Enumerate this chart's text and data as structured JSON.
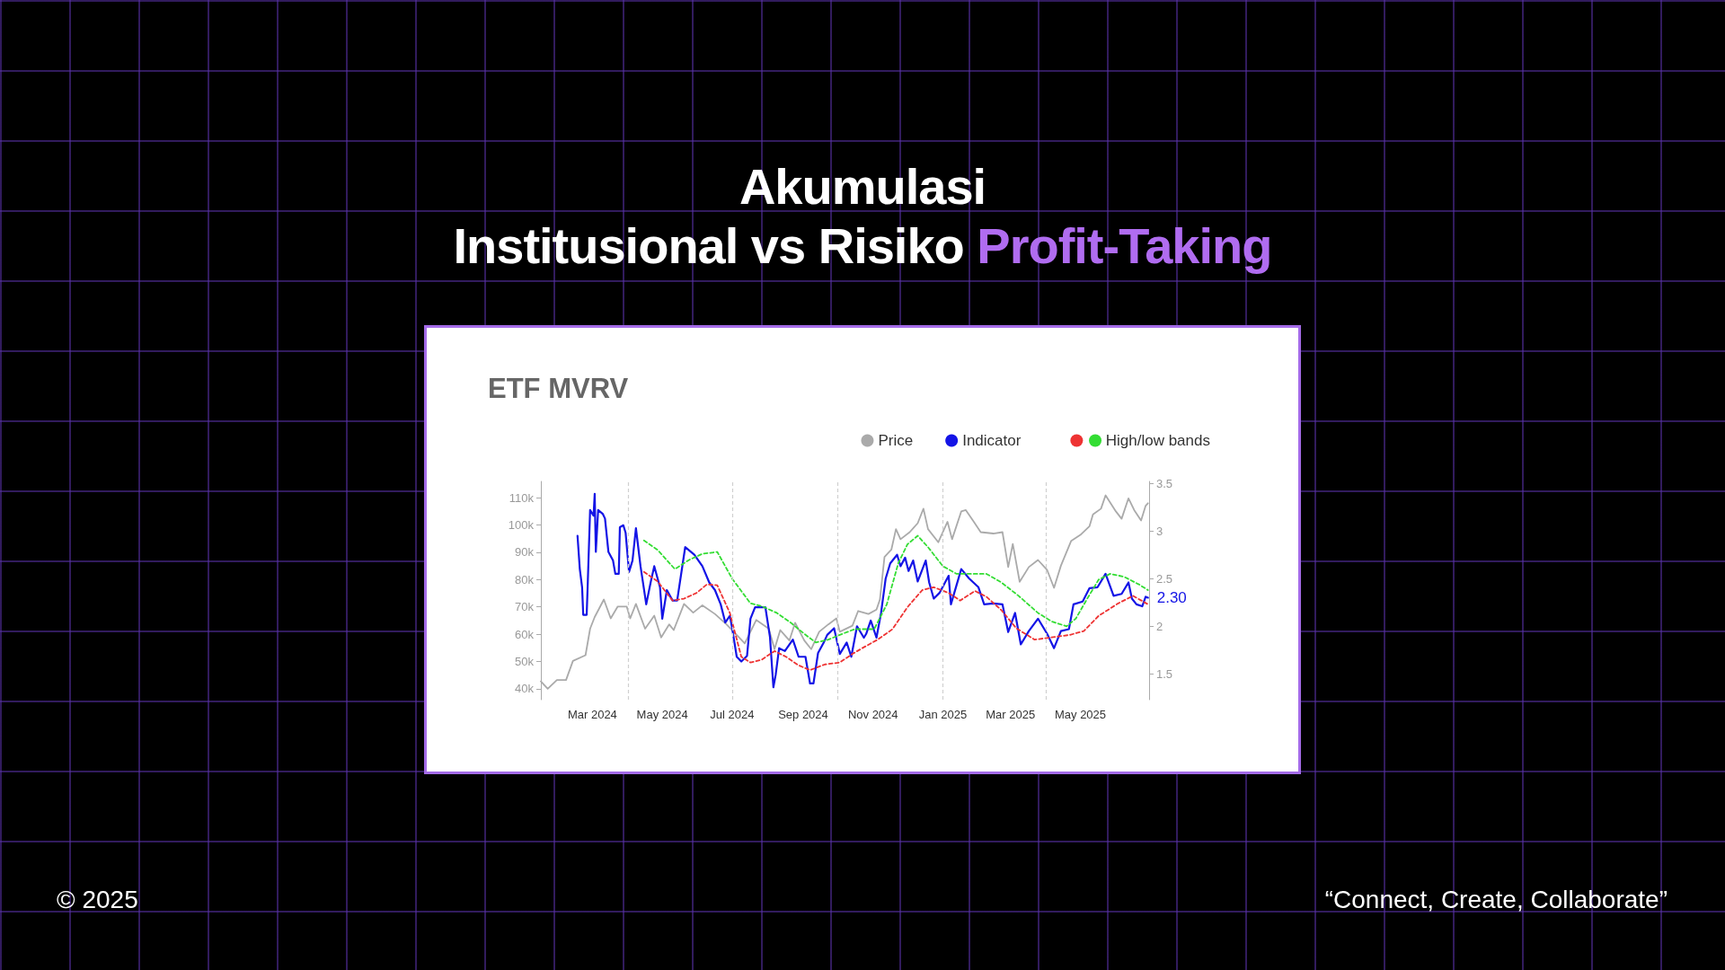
{
  "chart_data": {
    "type": "line",
    "title": "Akumulasi\nInstitusional vs Risiko Profit-Taking",
    "subtitle": "ETF MVRV",
    "annotations": [
      "© 2025",
      "“Connect, Create, Collaborate”"
    ],
    "legend": "top right",
    "marker": "none",
    "xlim": [
      "2024-01-16",
      "2025-06-30"
    ],
    "xticks": [
      {
        "value": "2024-03-01",
        "label": "Mar 2024"
      },
      {
        "value": "2024-05-01",
        "label": "May 2024"
      },
      {
        "value": "2024-07-01",
        "label": "Jul 2024"
      },
      {
        "value": "2024-09-01",
        "label": "Sep 2024"
      },
      {
        "value": "2024-11-01",
        "label": "Nov 2024"
      },
      {
        "value": "2025-01-01",
        "label": "Jan 2025"
      },
      {
        "value": "2025-03-01",
        "label": "Mar 2025"
      },
      {
        "value": "2025-05-01",
        "label": "May 2025"
      }
    ],
    "ylim": [
      36,
      116
    ],
    "yticks": [
      {
        "value": 40,
        "label": "40k"
      },
      {
        "value": 50,
        "label": "50k"
      },
      {
        "value": 60,
        "label": "60k"
      },
      {
        "value": 70,
        "label": "70k"
      },
      {
        "value": 80,
        "label": "80k"
      },
      {
        "value": 90,
        "label": "90k"
      },
      {
        "value": 100,
        "label": "100k"
      },
      {
        "value": 110,
        "label": "110k"
      }
    ],
    "y2lim": [
      1.23,
      3.52
    ],
    "y2ticks": [
      1.5,
      2,
      2.5,
      3,
      3.5
    ],
    "ref_lines": [
      {
        "axis": "x",
        "value": "2024-04-01",
        "color": "#d0d0d0",
        "line_style": "dashed"
      },
      {
        "axis": "x",
        "value": "2024-07-01",
        "color": "#d0d0d0",
        "line_style": "dashed"
      },
      {
        "axis": "x",
        "value": "2024-10-01",
        "color": "#d0d0d0",
        "line_style": "dashed"
      },
      {
        "axis": "x",
        "value": "2025-01-01",
        "color": "#d0d0d0",
        "line_style": "dashed"
      },
      {
        "axis": "x",
        "value": "2025-04-01",
        "color": "#d0d0d0",
        "line_style": "dashed"
      }
    ],
    "series": [
      {
        "name": "Price",
        "color": "#aaaaaa",
        "line_style": "solid",
        "x": [
          "2024-01-16",
          "2024-01-22",
          "2024-01-30",
          "2024-02-07",
          "2024-02-13",
          "2024-02-24",
          "2024-02-28",
          "2024-03-03",
          "2024-03-11",
          "2024-03-17",
          "2024-03-23",
          "2024-03-31",
          "2024-04-03",
          "2024-04-08",
          "2024-04-16",
          "2024-04-24",
          "2024-04-30",
          "2024-05-07",
          "2024-05-11",
          "2024-05-20",
          "2024-05-28",
          "2024-06-05",
          "2024-06-16",
          "2024-06-26",
          "2024-07-07",
          "2024-07-12",
          "2024-07-17",
          "2024-07-22",
          "2024-08-02",
          "2024-08-07",
          "2024-08-12",
          "2024-08-20",
          "2024-08-25",
          "2024-09-02",
          "2024-09-08",
          "2024-09-15",
          "2024-09-23",
          "2024-09-30",
          "2024-10-03",
          "2024-10-14",
          "2024-10-19",
          "2024-10-28",
          "2024-11-04",
          "2024-11-07",
          "2024-11-11",
          "2024-11-17",
          "2024-11-21",
          "2024-11-25",
          "2024-12-03",
          "2024-12-10",
          "2024-12-15",
          "2024-12-19",
          "2024-12-28",
          "2025-01-05",
          "2025-01-09",
          "2025-01-17",
          "2025-01-21",
          "2025-01-28",
          "2025-02-03",
          "2025-02-14",
          "2025-02-22",
          "2025-02-27",
          "2025-03-03",
          "2025-03-09",
          "2025-03-17",
          "2025-03-25",
          "2025-04-02",
          "2025-04-08",
          "2025-04-14",
          "2025-04-23",
          "2025-05-01",
          "2025-05-09",
          "2025-05-12",
          "2025-05-19",
          "2025-05-23",
          "2025-06-01",
          "2025-06-06",
          "2025-06-12",
          "2025-06-17",
          "2025-06-23",
          "2025-06-27",
          "2025-06-29"
        ],
        "values": [
          42.7,
          40.0,
          43.2,
          43.2,
          50.2,
          52.3,
          62.0,
          66.3,
          72.7,
          65.8,
          70.1,
          70.1,
          65.8,
          71.1,
          62.0,
          66.8,
          58.8,
          63.6,
          61.5,
          71.1,
          67.9,
          70.6,
          67.4,
          63.6,
          58.8,
          56.6,
          60.9,
          65.2,
          62.0,
          54.5,
          61.5,
          57.7,
          64.2,
          57.7,
          54.5,
          60.9,
          63.6,
          65.8,
          60.9,
          63.1,
          68.5,
          67.4,
          69.0,
          72.7,
          88.3,
          91.0,
          98.5,
          94.8,
          97.4,
          100.7,
          106.0,
          98.5,
          93.7,
          101.2,
          94.8,
          105.0,
          105.5,
          101.2,
          97.4,
          96.9,
          97.4,
          84.6,
          93.1,
          79.2,
          84.6,
          87.2,
          83.5,
          77.0,
          85.1,
          94.2,
          96.4,
          99.6,
          103.9,
          106.0,
          110.9,
          105.0,
          102.3,
          109.8,
          105.5,
          101.7,
          107.1,
          108.0
        ]
      },
      {
        "name": "Indicator",
        "color": "#1414e6",
        "axis": "y2",
        "line_style": "solid",
        "x": [
          "2024-02-17",
          "2024-02-19",
          "2024-02-21",
          "2024-02-22",
          "2024-02-25",
          "2024-02-26",
          "2024-02-28",
          "2024-03-02",
          "2024-03-03",
          "2024-03-04",
          "2024-03-06",
          "2024-03-10",
          "2024-03-12",
          "2024-03-15",
          "2024-03-19",
          "2024-03-21",
          "2024-03-24",
          "2024-03-25",
          "2024-03-28",
          "2024-03-30",
          "2024-04-02",
          "2024-04-05",
          "2024-04-08",
          "2024-04-12",
          "2024-04-17",
          "2024-04-21",
          "2024-04-24",
          "2024-04-29",
          "2024-05-01",
          "2024-05-05",
          "2024-05-10",
          "2024-05-14",
          "2024-05-21",
          "2024-05-29",
          "2024-06-05",
          "2024-06-11",
          "2024-06-16",
          "2024-06-21",
          "2024-06-25",
          "2024-06-29",
          "2024-07-01",
          "2024-07-05",
          "2024-07-09",
          "2024-07-14",
          "2024-07-17",
          "2024-07-21",
          "2024-07-26",
          "2024-07-30",
          "2024-08-03",
          "2024-08-06",
          "2024-08-08",
          "2024-08-11",
          "2024-08-16",
          "2024-08-23",
          "2024-08-28",
          "2024-09-03",
          "2024-09-07",
          "2024-09-10",
          "2024-09-14",
          "2024-09-19",
          "2024-09-22",
          "2024-09-28",
          "2024-10-03",
          "2024-10-09",
          "2024-10-13",
          "2024-10-18",
          "2024-10-24",
          "2024-10-26",
          "2024-10-30",
          "2024-11-04",
          "2024-11-08",
          "2024-11-12",
          "2024-11-16",
          "2024-11-22",
          "2024-11-25",
          "2024-11-29",
          "2024-12-02",
          "2024-12-06",
          "2024-12-10",
          "2024-12-17",
          "2024-12-20",
          "2024-12-24",
          "2024-12-29",
          "2025-01-06",
          "2025-01-08",
          "2025-01-17",
          "2025-01-24",
          "2025-02-01",
          "2025-02-06",
          "2025-02-14",
          "2025-02-22",
          "2025-02-27",
          "2025-03-05",
          "2025-03-10",
          "2025-03-17",
          "2025-03-25",
          "2025-04-02",
          "2025-04-08",
          "2025-04-14",
          "2025-04-21",
          "2025-04-25",
          "2025-05-03",
          "2025-05-09",
          "2025-05-16",
          "2025-05-23",
          "2025-05-30",
          "2025-06-06",
          "2025-06-12",
          "2025-06-15",
          "2025-06-19",
          "2025-06-24",
          "2025-06-27",
          "2025-06-29"
        ],
        "values": [
          2.95,
          2.6,
          2.41,
          2.12,
          2.12,
          2.47,
          3.22,
          3.16,
          3.39,
          2.78,
          3.22,
          3.18,
          3.13,
          2.78,
          2.69,
          2.55,
          2.55,
          3.04,
          3.06,
          2.98,
          2.57,
          2.69,
          3.03,
          2.63,
          2.23,
          2.47,
          2.63,
          2.41,
          2.08,
          2.38,
          2.27,
          2.27,
          2.83,
          2.75,
          2.63,
          2.46,
          2.38,
          2.23,
          2.04,
          2.11,
          1.98,
          1.68,
          1.63,
          1.69,
          2.08,
          2.2,
          2.2,
          2.2,
          1.89,
          1.36,
          1.49,
          1.77,
          1.74,
          1.86,
          1.68,
          1.68,
          1.4,
          1.4,
          1.72,
          1.83,
          1.91,
          1.98,
          1.71,
          1.83,
          1.68,
          2.0,
          1.88,
          1.92,
          2.06,
          1.88,
          2.14,
          2.5,
          2.66,
          2.75,
          2.63,
          2.72,
          2.58,
          2.69,
          2.47,
          2.69,
          2.46,
          2.29,
          2.35,
          2.53,
          2.23,
          2.6,
          2.5,
          2.41,
          2.23,
          2.24,
          2.23,
          1.94,
          2.14,
          1.81,
          1.95,
          2.08,
          1.92,
          1.77,
          1.95,
          1.97,
          2.23,
          2.26,
          2.4,
          2.41,
          2.55,
          2.32,
          2.34,
          2.46,
          2.29,
          2.23,
          2.21,
          2.31,
          2.3
        ],
        "value_labels": [
          null,
          null,
          null,
          null,
          null,
          null,
          null,
          null,
          null,
          null,
          null,
          null,
          null,
          null,
          null,
          null,
          null,
          null,
          null,
          null,
          null,
          null,
          null,
          null,
          null,
          null,
          null,
          null,
          null,
          null,
          null,
          null,
          null,
          null,
          null,
          null,
          null,
          null,
          null,
          null,
          null,
          null,
          null,
          null,
          null,
          null,
          null,
          null,
          null,
          null,
          null,
          null,
          null,
          null,
          null,
          null,
          null,
          null,
          null,
          null,
          null,
          null,
          null,
          null,
          null,
          null,
          null,
          null,
          null,
          null,
          null,
          null,
          null,
          null,
          null,
          null,
          null,
          null,
          null,
          null,
          null,
          null,
          null,
          null,
          null,
          null,
          null,
          null,
          null,
          null,
          null,
          null,
          null,
          null,
          null,
          null,
          null,
          null,
          null,
          null,
          null,
          null,
          null,
          null,
          null,
          null,
          null,
          null,
          null,
          null,
          null,
          null,
          "2.30"
        ]
      },
      {
        "name": "High/low bands",
        "color": "#33dd33",
        "axis": "y2",
        "line_style": "dashed",
        "x": [
          "2024-04-15",
          "2024-04-27",
          "2024-05-12",
          "2024-05-25",
          "2024-06-05",
          "2024-06-18",
          "2024-07-01",
          "2024-07-17",
          "2024-07-27",
          "2024-08-09",
          "2024-08-22",
          "2024-09-02",
          "2024-09-12",
          "2024-09-23",
          "2024-10-03",
          "2024-10-16",
          "2024-10-24",
          "2024-11-02",
          "2024-11-13",
          "2024-11-23",
          "2024-12-01",
          "2024-12-10",
          "2024-12-19",
          "2025-01-01",
          "2025-01-13",
          "2025-02-08",
          "2025-02-21",
          "2025-03-08",
          "2025-03-25",
          "2025-04-06",
          "2025-04-19",
          "2025-04-27",
          "2025-05-07",
          "2025-05-17",
          "2025-05-27",
          "2025-06-08",
          "2025-06-21",
          "2025-06-29"
        ],
        "values": [
          2.9,
          2.8,
          2.6,
          2.7,
          2.76,
          2.78,
          2.5,
          2.24,
          2.21,
          2.14,
          2.03,
          1.92,
          1.83,
          1.86,
          1.91,
          1.97,
          1.97,
          1.97,
          2.23,
          2.66,
          2.86,
          2.95,
          2.83,
          2.63,
          2.55,
          2.55,
          2.46,
          2.32,
          2.14,
          2.05,
          2.0,
          2.08,
          2.29,
          2.49,
          2.55,
          2.52,
          2.44,
          2.38
        ]
      },
      {
        "color": "#ee3333",
        "axis": "y2",
        "line_style": "dashed",
        "x": [
          "2024-04-15",
          "2024-04-27",
          "2024-05-10",
          "2024-05-20",
          "2024-05-31",
          "2024-06-09",
          "2024-06-18",
          "2024-06-29",
          "2024-07-09",
          "2024-07-17",
          "2024-07-27",
          "2024-08-07",
          "2024-08-17",
          "2024-08-28",
          "2024-09-07",
          "2024-09-20",
          "2024-10-03",
          "2024-10-14",
          "2024-10-24",
          "2024-11-05",
          "2024-11-18",
          "2024-12-01",
          "2024-12-14",
          "2024-12-24",
          "2025-01-06",
          "2025-01-16",
          "2025-01-29",
          "2025-02-08",
          "2025-02-21",
          "2025-03-06",
          "2025-03-22",
          "2025-04-04",
          "2025-04-22",
          "2025-05-04",
          "2025-05-17",
          "2025-06-03",
          "2025-06-16",
          "2025-06-29"
        ],
        "values": [
          2.57,
          2.47,
          2.27,
          2.29,
          2.35,
          2.44,
          2.43,
          2.14,
          1.68,
          1.62,
          1.65,
          1.74,
          1.68,
          1.59,
          1.54,
          1.6,
          1.62,
          1.71,
          1.78,
          1.86,
          1.97,
          2.2,
          2.38,
          2.41,
          2.35,
          2.27,
          2.37,
          2.31,
          2.17,
          1.98,
          1.86,
          1.88,
          1.91,
          1.95,
          2.11,
          2.24,
          2.32,
          2.23
        ]
      }
    ]
  }
}
